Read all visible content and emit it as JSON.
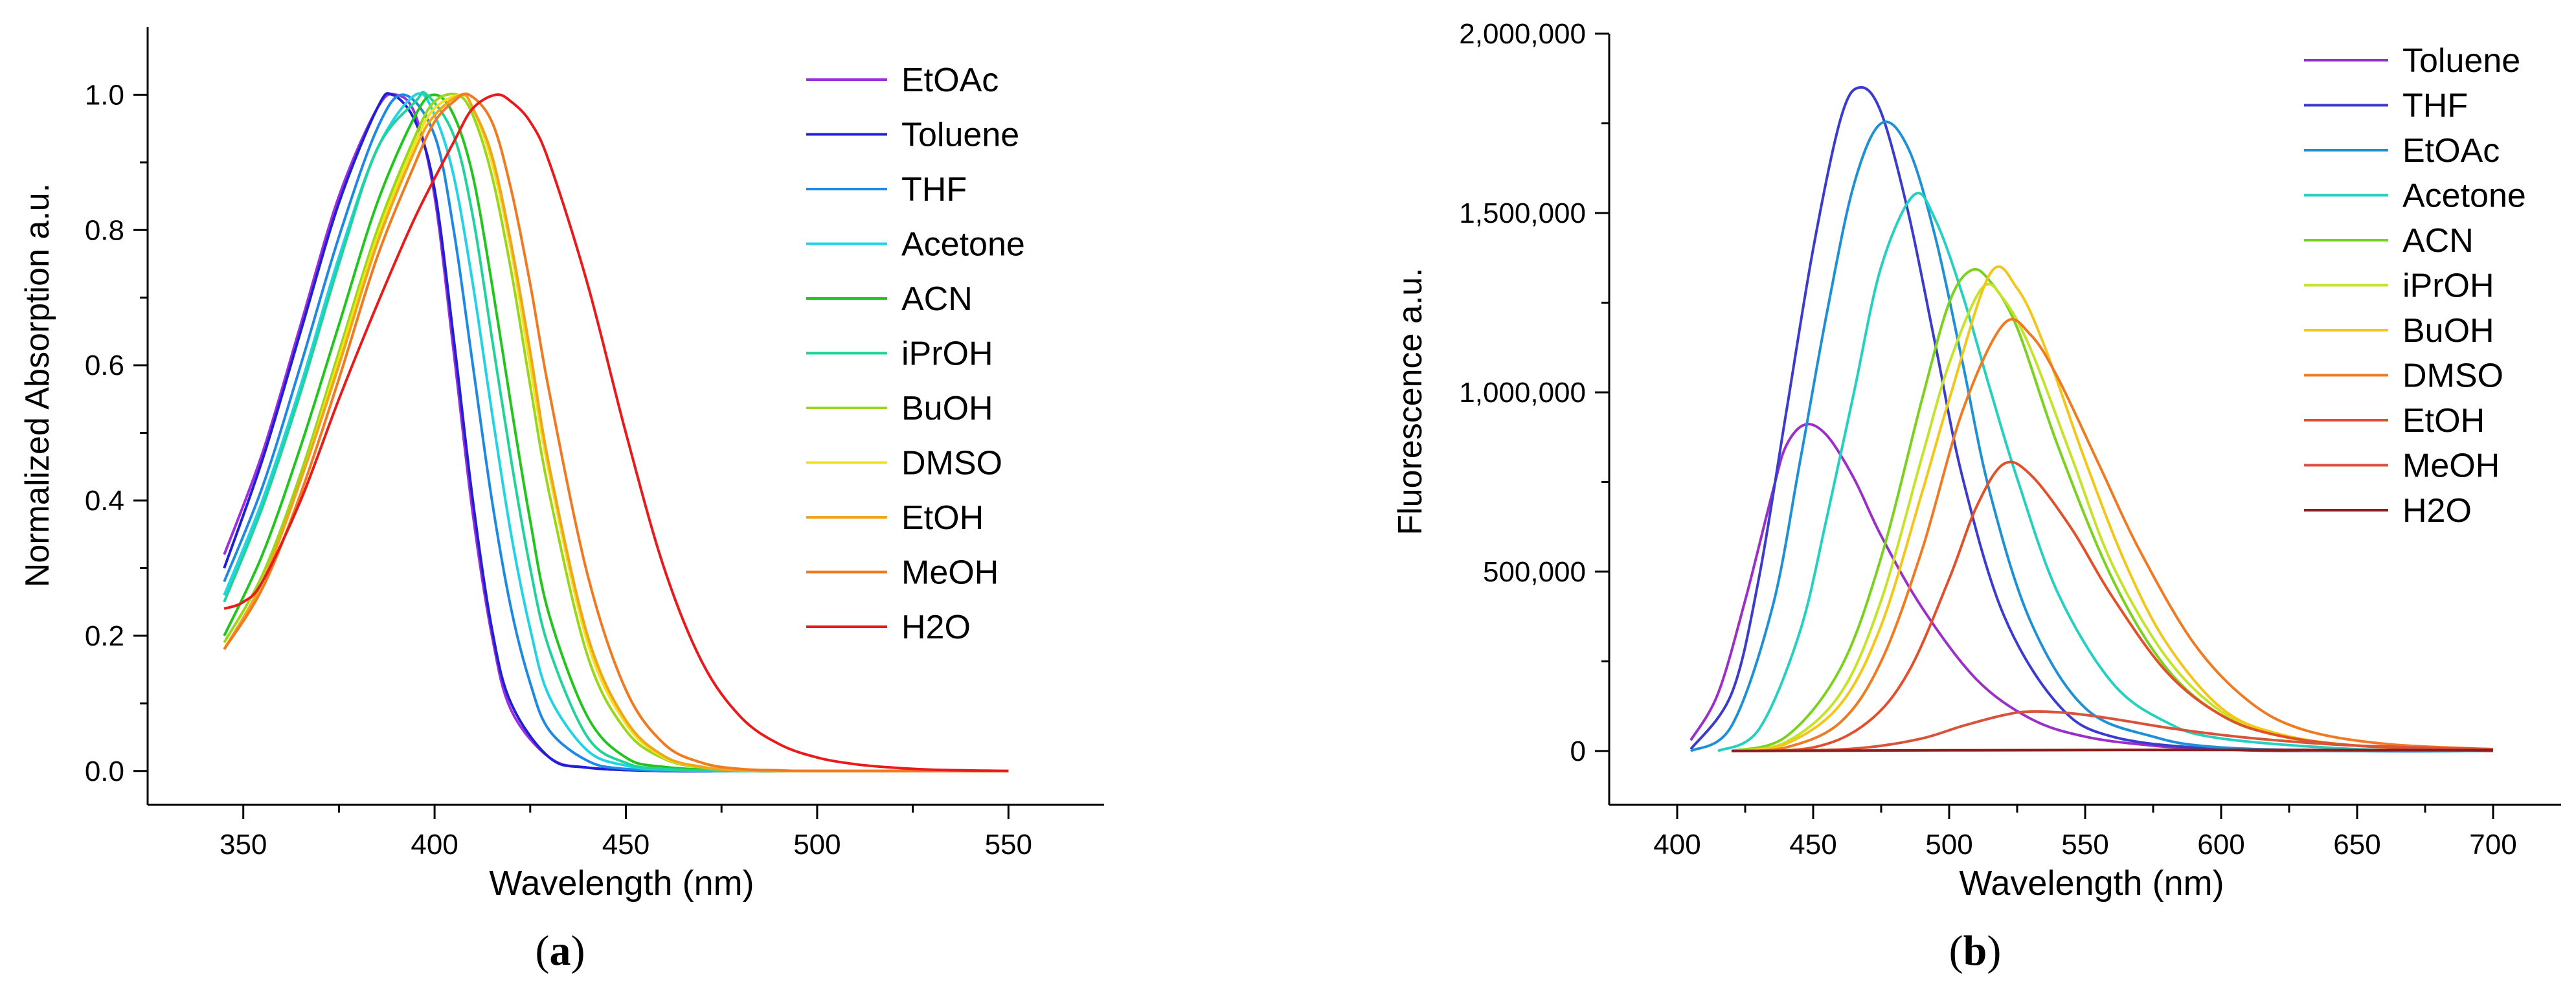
{
  "chart_data": [
    {
      "type": "line",
      "panel": "a",
      "panel_label": "a",
      "xlabel": "Wavelength (nm)",
      "ylabel": "Normalized Absorption a.u.",
      "xlim": [
        325,
        575
      ],
      "ylim": [
        -0.05,
        1.1
      ],
      "xticks": [
        350,
        400,
        450,
        500,
        550
      ],
      "yticks": [
        0.0,
        0.2,
        0.4,
        0.6,
        0.8,
        1.0
      ],
      "ytick_labels": [
        "0.0",
        "0.2",
        "0.4",
        "0.6",
        "0.8",
        "1.0"
      ],
      "legend_position": "top-right",
      "series": [
        {
          "name": "EtOAc",
          "color": "#9b30e0",
          "x": [
            345,
            355,
            365,
            375,
            385,
            390,
            395,
            400,
            405,
            410,
            415,
            420,
            430,
            440,
            460,
            480,
            500,
            550
          ],
          "y": [
            0.32,
            0.47,
            0.66,
            0.85,
            0.98,
            1.0,
            0.97,
            0.85,
            0.62,
            0.38,
            0.2,
            0.09,
            0.02,
            0.005,
            0.0,
            0.0,
            0.0,
            0.0
          ]
        },
        {
          "name": "Toluene",
          "color": "#1f1fd6",
          "x": [
            345,
            355,
            365,
            375,
            385,
            389,
            395,
            400,
            405,
            410,
            415,
            420,
            430,
            440,
            460,
            480,
            500,
            550
          ],
          "y": [
            0.3,
            0.46,
            0.65,
            0.84,
            0.98,
            1.0,
            0.96,
            0.86,
            0.64,
            0.4,
            0.21,
            0.1,
            0.02,
            0.005,
            0.0,
            0.0,
            0.0,
            0.0
          ]
        },
        {
          "name": "THF",
          "color": "#1e88e5",
          "x": [
            345,
            355,
            365,
            375,
            385,
            392,
            400,
            405,
            410,
            415,
            420,
            425,
            430,
            440,
            450,
            470,
            500,
            550
          ],
          "y": [
            0.28,
            0.42,
            0.6,
            0.79,
            0.95,
            1.0,
            0.94,
            0.8,
            0.6,
            0.4,
            0.24,
            0.13,
            0.06,
            0.015,
            0.003,
            0.0,
            0.0,
            0.0
          ]
        },
        {
          "name": "Acetone",
          "color": "#22d3e6",
          "x": [
            345,
            355,
            365,
            375,
            385,
            395,
            400,
            405,
            410,
            415,
            420,
            425,
            430,
            440,
            450,
            460,
            480,
            500,
            550
          ],
          "y": [
            0.26,
            0.4,
            0.57,
            0.76,
            0.92,
            1.0,
            0.97,
            0.88,
            0.72,
            0.53,
            0.35,
            0.21,
            0.11,
            0.03,
            0.008,
            0.002,
            0.0,
            0.0,
            0.0
          ]
        },
        {
          "name": "ACN",
          "color": "#22c41e",
          "x": [
            345,
            355,
            365,
            375,
            385,
            395,
            400,
            405,
            410,
            415,
            420,
            425,
            430,
            440,
            450,
            460,
            480,
            500,
            550
          ],
          "y": [
            0.2,
            0.32,
            0.48,
            0.66,
            0.84,
            0.97,
            1.0,
            0.97,
            0.88,
            0.72,
            0.54,
            0.37,
            0.23,
            0.08,
            0.02,
            0.006,
            0.0,
            0.0,
            0.0
          ]
        },
        {
          "name": "iPrOH",
          "color": "#1fd39a",
          "x": [
            345,
            355,
            365,
            375,
            385,
            395,
            398,
            405,
            410,
            415,
            420,
            425,
            430,
            440,
            450,
            460,
            480,
            500,
            550
          ],
          "y": [
            0.25,
            0.39,
            0.56,
            0.75,
            0.92,
            0.99,
            1.0,
            0.94,
            0.82,
            0.64,
            0.46,
            0.3,
            0.18,
            0.05,
            0.012,
            0.003,
            0.0,
            0.0,
            0.0
          ]
        },
        {
          "name": "BuOH",
          "color": "#9ad61a",
          "x": [
            345,
            355,
            365,
            375,
            385,
            395,
            400,
            406,
            410,
            415,
            420,
            425,
            430,
            440,
            450,
            460,
            470,
            480,
            500,
            550
          ],
          "y": [
            0.19,
            0.29,
            0.44,
            0.62,
            0.8,
            0.94,
            0.99,
            1.0,
            0.97,
            0.88,
            0.74,
            0.57,
            0.41,
            0.17,
            0.06,
            0.018,
            0.005,
            0.001,
            0.0,
            0.0
          ]
        },
        {
          "name": "DMSO",
          "color": "#f2e21a",
          "x": [
            345,
            355,
            365,
            375,
            385,
            395,
            400,
            407,
            410,
            415,
            420,
            425,
            430,
            440,
            450,
            460,
            470,
            480,
            500,
            550
          ],
          "y": [
            0.18,
            0.28,
            0.43,
            0.61,
            0.79,
            0.93,
            0.98,
            1.0,
            0.98,
            0.9,
            0.77,
            0.6,
            0.44,
            0.19,
            0.07,
            0.02,
            0.006,
            0.001,
            0.0,
            0.0
          ]
        },
        {
          "name": "EtOH",
          "color": "#f2a51a",
          "x": [
            345,
            355,
            365,
            375,
            385,
            395,
            400,
            407,
            410,
            415,
            420,
            425,
            430,
            440,
            450,
            460,
            470,
            480,
            500,
            550
          ],
          "y": [
            0.18,
            0.28,
            0.43,
            0.6,
            0.78,
            0.92,
            0.97,
            1.0,
            0.98,
            0.91,
            0.78,
            0.62,
            0.45,
            0.2,
            0.075,
            0.022,
            0.006,
            0.001,
            0.0,
            0.0
          ]
        },
        {
          "name": "MeOH",
          "color": "#f07a22",
          "x": [
            345,
            355,
            365,
            375,
            385,
            395,
            400,
            405,
            409,
            415,
            420,
            425,
            430,
            440,
            450,
            460,
            470,
            480,
            490,
            500,
            550
          ],
          "y": [
            0.18,
            0.27,
            0.41,
            0.58,
            0.76,
            0.9,
            0.96,
            0.99,
            1.0,
            0.96,
            0.86,
            0.72,
            0.56,
            0.29,
            0.12,
            0.04,
            0.012,
            0.003,
            0.001,
            0.0,
            0.0
          ]
        },
        {
          "name": "H2O",
          "color": "#e81a1a",
          "x": [
            345,
            350,
            355,
            365,
            375,
            385,
            395,
            405,
            410,
            416,
            420,
            425,
            430,
            440,
            450,
            460,
            470,
            480,
            490,
            500,
            510,
            520,
            530,
            550
          ],
          "y": [
            0.24,
            0.25,
            0.28,
            0.4,
            0.55,
            0.69,
            0.82,
            0.93,
            0.98,
            1.0,
            0.99,
            0.96,
            0.9,
            0.72,
            0.5,
            0.3,
            0.16,
            0.08,
            0.04,
            0.02,
            0.01,
            0.005,
            0.002,
            0.0
          ]
        }
      ]
    },
    {
      "type": "line",
      "panel": "b",
      "panel_label": "b",
      "xlabel": "Wavelength (nm)",
      "ylabel": "Fluorescence a.u.",
      "xlim": [
        375,
        725
      ],
      "ylim": [
        -150000,
        2000000
      ],
      "xticks": [
        400,
        450,
        500,
        550,
        600,
        650,
        700
      ],
      "yticks": [
        0,
        500000,
        1000000,
        1500000,
        2000000
      ],
      "ytick_labels": [
        "0",
        "500,000",
        "1,000,000",
        "1,500,000",
        "2,000,000"
      ],
      "legend_position": "top-right",
      "series": [
        {
          "name": "Toluene",
          "color": "#9b30c8",
          "x": [
            405,
            415,
            425,
            435,
            440,
            447,
            455,
            465,
            475,
            490,
            510,
            530,
            550,
            575,
            600,
            650,
            700
          ],
          "y": [
            30000,
            160000,
            420000,
            720000,
            850000,
            910000,
            880000,
            760000,
            600000,
            400000,
            200000,
            90000,
            40000,
            15000,
            5000,
            0,
            0
          ]
        },
        {
          "name": "THF",
          "color": "#3b3bcf",
          "x": [
            405,
            420,
            430,
            440,
            450,
            460,
            467,
            475,
            485,
            495,
            505,
            520,
            540,
            560,
            600,
            650,
            700
          ],
          "y": [
            5000,
            160000,
            480000,
            940000,
            1400000,
            1760000,
            1850000,
            1780000,
            1500000,
            1130000,
            760000,
            380000,
            130000,
            40000,
            5000,
            0,
            0
          ]
        },
        {
          "name": "EtOAc",
          "color": "#1e90d6",
          "x": [
            405,
            420,
            435,
            445,
            455,
            465,
            475,
            485,
            495,
            505,
            515,
            530,
            550,
            575,
            600,
            650,
            700
          ],
          "y": [
            0,
            70000,
            400000,
            800000,
            1220000,
            1580000,
            1750000,
            1680000,
            1430000,
            1080000,
            720000,
            360000,
            120000,
            40000,
            10000,
            0,
            0
          ]
        },
        {
          "name": "Acetone",
          "color": "#26d0c0",
          "x": [
            415,
            430,
            445,
            455,
            465,
            475,
            487,
            495,
            505,
            515,
            525,
            540,
            560,
            580,
            600,
            650,
            700
          ],
          "y": [
            0,
            60000,
            330000,
            650000,
            1000000,
            1350000,
            1550000,
            1480000,
            1270000,
            1010000,
            760000,
            440000,
            190000,
            80000,
            35000,
            5000,
            0
          ]
        },
        {
          "name": "ACN",
          "color": "#7ad11e",
          "x": [
            420,
            440,
            460,
            475,
            490,
            500,
            508,
            515,
            525,
            540,
            560,
            580,
            600,
            620,
            650,
            700
          ],
          "y": [
            0,
            40000,
            230000,
            540000,
            980000,
            1250000,
            1340000,
            1310000,
            1180000,
            850000,
            480000,
            230000,
            100000,
            45000,
            15000,
            0
          ]
        },
        {
          "name": "iPrOH",
          "color": "#c6e32a",
          "x": [
            420,
            440,
            460,
            475,
            490,
            500,
            512,
            520,
            530,
            545,
            560,
            580,
            600,
            620,
            650,
            700
          ],
          "y": [
            0,
            25000,
            160000,
            420000,
            820000,
            1080000,
            1290000,
            1260000,
            1120000,
            820000,
            520000,
            260000,
            110000,
            45000,
            15000,
            0
          ]
        },
        {
          "name": "BuOH",
          "color": "#f2c71a",
          "x": [
            420,
            440,
            460,
            475,
            490,
            500,
            515,
            525,
            535,
            550,
            565,
            580,
            600,
            620,
            650,
            700
          ],
          "y": [
            0,
            20000,
            130000,
            350000,
            720000,
            980000,
            1330000,
            1290000,
            1130000,
            810000,
            520000,
            300000,
            120000,
            50000,
            15000,
            0
          ]
        },
        {
          "name": "DMSO",
          "color": "#f07a22",
          "x": [
            420,
            440,
            460,
            475,
            490,
            505,
            520,
            530,
            540,
            555,
            570,
            590,
            610,
            630,
            660,
            700
          ],
          "y": [
            0,
            10000,
            80000,
            250000,
            560000,
            950000,
            1190000,
            1160000,
            1040000,
            800000,
            560000,
            300000,
            140000,
            60000,
            20000,
            5000
          ]
        },
        {
          "name": "EtOH",
          "color": "#e2502b",
          "x": [
            420,
            450,
            470,
            485,
            500,
            510,
            520,
            530,
            545,
            560,
            580,
            600,
            620,
            650,
            700
          ],
          "y": [
            0,
            10000,
            80000,
            220000,
            480000,
            680000,
            800000,
            770000,
            620000,
            430000,
            220000,
            100000,
            45000,
            15000,
            0
          ]
        },
        {
          "name": "MeOH",
          "color": "#d9533a",
          "x": [
            420,
            450,
            470,
            490,
            505,
            520,
            530,
            545,
            560,
            580,
            600,
            620,
            650,
            700
          ],
          "y": [
            0,
            2000,
            10000,
            35000,
            70000,
            100000,
            110000,
            105000,
            90000,
            65000,
            45000,
            30000,
            15000,
            5000
          ]
        },
        {
          "name": "H2O",
          "color": "#8b1e1e",
          "x": [
            420,
            500,
            600,
            700
          ],
          "y": [
            0,
            2000,
            3000,
            2000
          ]
        }
      ]
    }
  ]
}
